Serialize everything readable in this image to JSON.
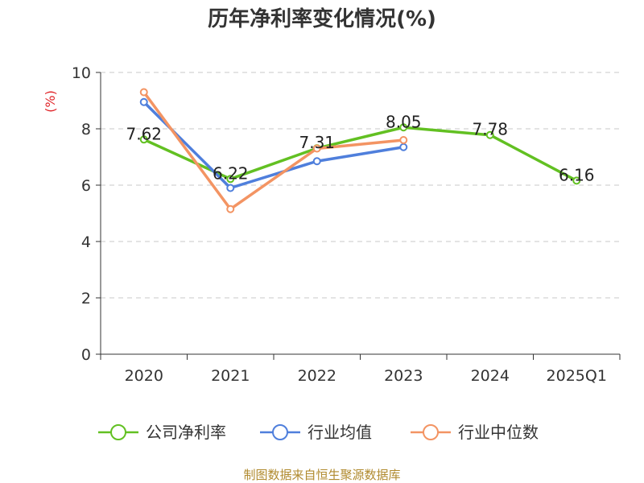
{
  "chart_data": {
    "type": "line",
    "title": "历年净利率变化情况(%)",
    "ylabel": "(%)",
    "ylim": [
      0,
      10
    ],
    "yticks": [
      "0",
      "2",
      "4",
      "6",
      "8",
      "10"
    ],
    "categories": [
      "2020",
      "2021",
      "2022",
      "2023",
      "2024",
      "2025Q1"
    ],
    "grid": true,
    "legend_position": "bottom",
    "series": [
      {
        "name": "公司净利率",
        "color": "#62c022",
        "values": [
          7.62,
          6.22,
          7.31,
          8.05,
          7.78,
          6.16
        ],
        "labels": [
          "7.62",
          "6.22",
          "7.31",
          "8.05",
          "7.78",
          "6.16"
        ]
      },
      {
        "name": "行业均值",
        "color": "#4f7fdc",
        "values": [
          8.95,
          5.9,
          6.85,
          7.35,
          null,
          null
        ]
      },
      {
        "name": "行业中位数",
        "color": "#f39463",
        "values": [
          9.3,
          5.15,
          7.3,
          7.6,
          null,
          null
        ]
      }
    ]
  },
  "source": "制图数据来自恒生聚源数据库"
}
